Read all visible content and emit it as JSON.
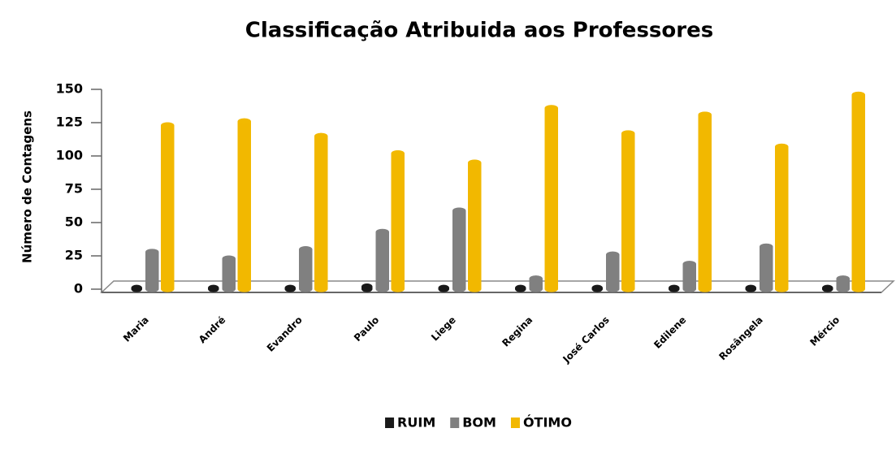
{
  "chart_data": {
    "type": "bar",
    "title": "Classificação Atribuida aos Professores",
    "y_label": "Número de Contagens",
    "categories": [
      "Maria",
      "André",
      "Evandro",
      "Paulo",
      "Liege",
      "Regina",
      "José Carlos",
      "Edilene",
      "Rosângela",
      "Mércio"
    ],
    "series": [
      {
        "name": "RUIM",
        "color": "#1a1a1a",
        "values": [
          1,
          1,
          1,
          2,
          1,
          1,
          1,
          1,
          1,
          1
        ]
      },
      {
        "name": "BOM",
        "color": "#808080",
        "values": [
          28,
          23,
          30,
          43,
          59,
          8,
          26,
          19,
          32,
          8
        ]
      },
      {
        "name": "ÓTIMO",
        "color": "#f2b800",
        "values": [
          123,
          126,
          115,
          102,
          95,
          136,
          117,
          131,
          107,
          146
        ]
      }
    ],
    "ylim": [
      0,
      150
    ],
    "yticks": [
      0,
      25,
      50,
      75,
      100,
      125,
      150
    ],
    "legend": "bottom"
  }
}
